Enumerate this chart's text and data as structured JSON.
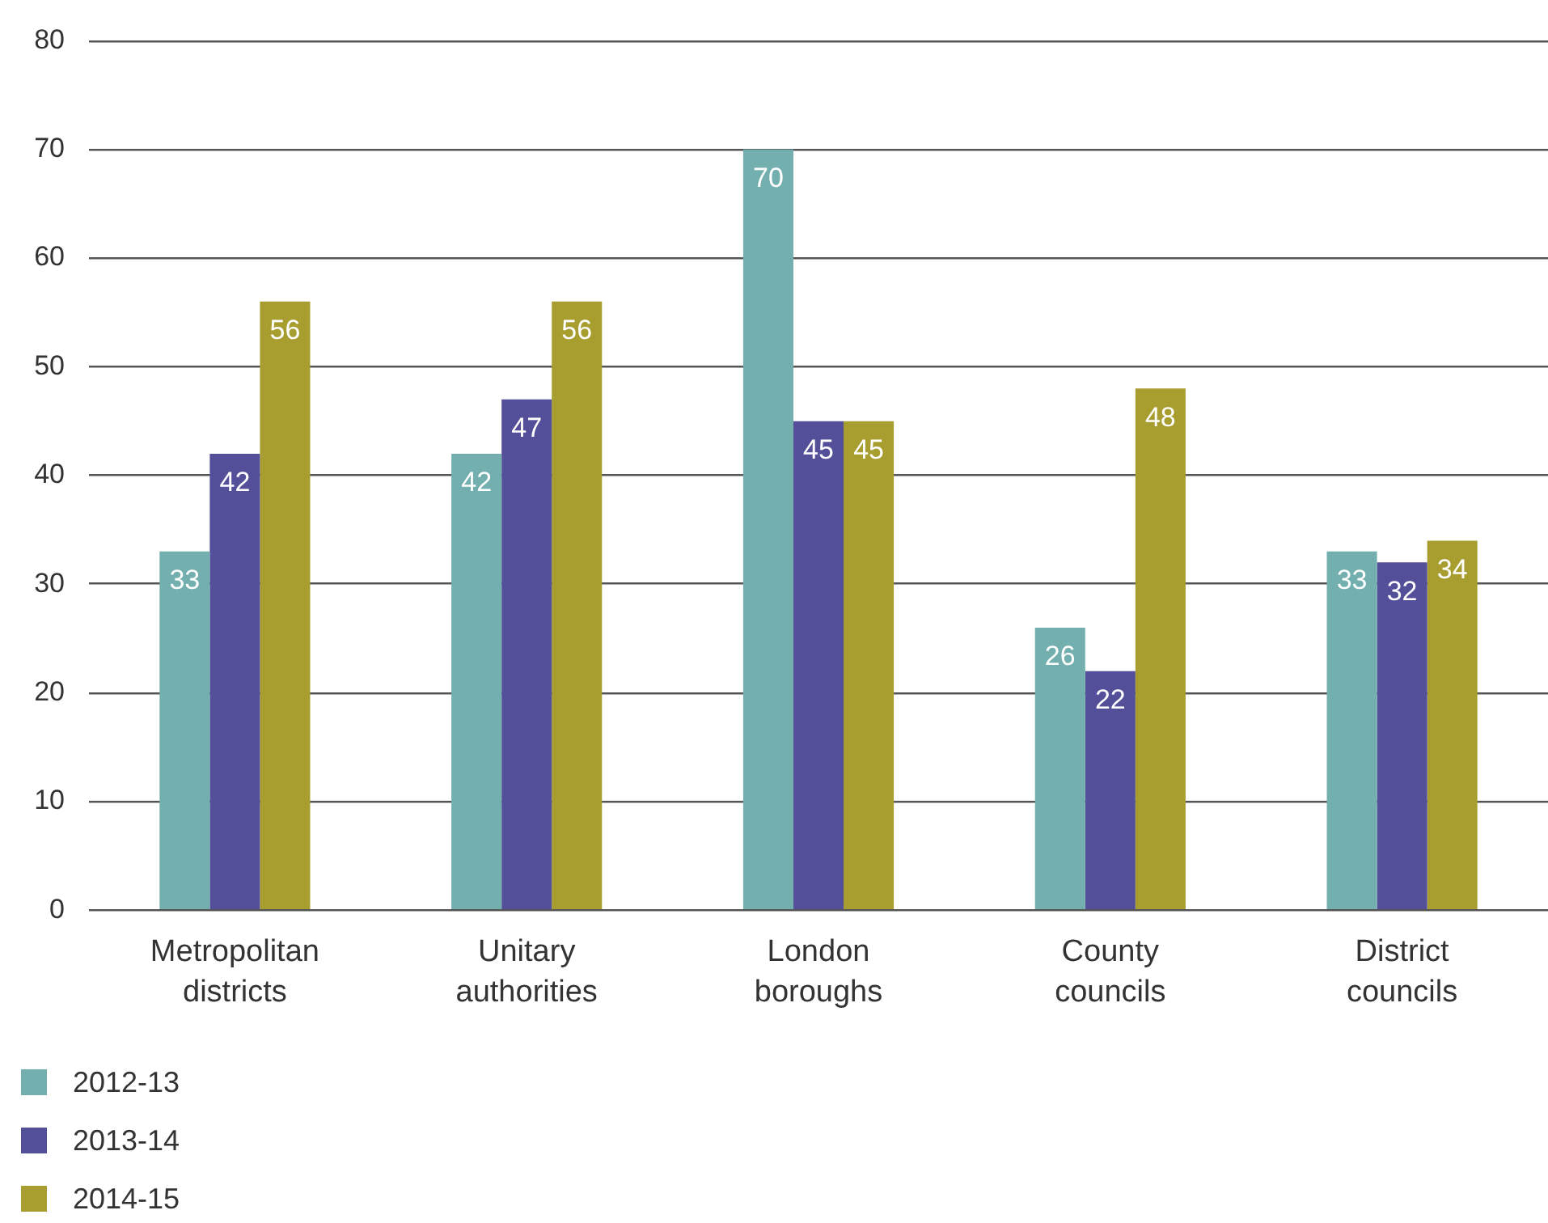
{
  "chart_data": {
    "type": "bar",
    "categories": [
      "Metropolitan districts",
      "Unitary authorities",
      "London boroughs",
      "County councils",
      "District councils"
    ],
    "series": [
      {
        "name": "2012-13",
        "color": "#72afae",
        "values": [
          33,
          42,
          70,
          26,
          33
        ]
      },
      {
        "name": "2013-14",
        "color": "#544f99",
        "values": [
          42,
          47,
          45,
          22,
          32
        ]
      },
      {
        "name": "2014-15",
        "color": "#a89e30",
        "values": [
          56,
          56,
          45,
          48,
          34
        ]
      }
    ],
    "ylim": [
      0,
      80
    ],
    "yticks": [
      0,
      10,
      20,
      30,
      40,
      50,
      60,
      70,
      80
    ],
    "grid": "y",
    "legend": "bottom",
    "data_labels": true
  }
}
